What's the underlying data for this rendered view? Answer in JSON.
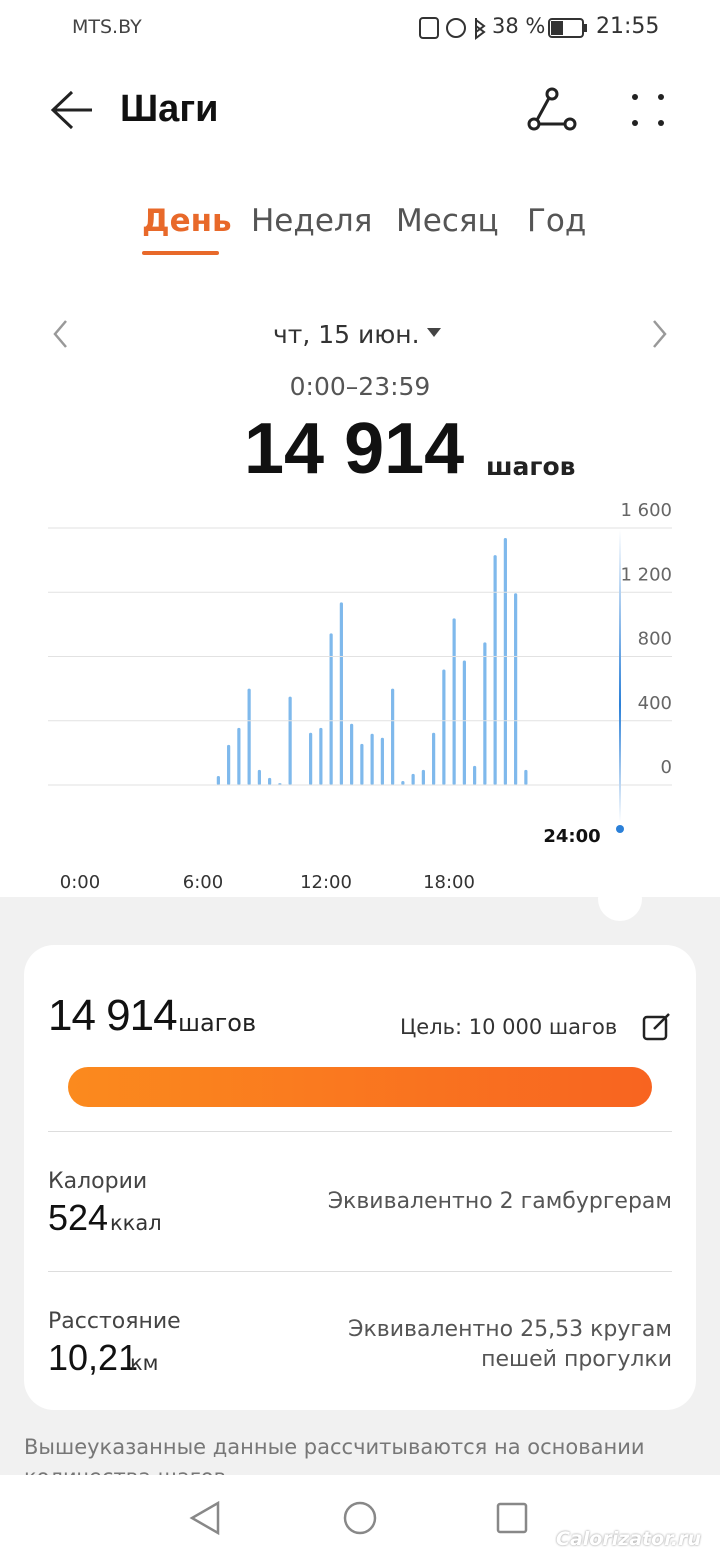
{
  "status_bar": {
    "carrier": "MTS.BY",
    "battery": "38 %",
    "time": "21:55"
  },
  "header": {
    "title": "Шаги"
  },
  "tabs": [
    "День",
    "Неделя",
    "Месяц",
    "Год"
  ],
  "summary": {
    "date": "чт, 15 июн.",
    "range": "0:00–23:59",
    "total": "14 914",
    "unit": "шагов"
  },
  "chart_data": {
    "type": "bar",
    "color": "#7fb9ec",
    "x": [
      6.75,
      7.25,
      7.75,
      8.25,
      8.75,
      9.25,
      9.75,
      10.25,
      11.25,
      11.75,
      12.25,
      12.75,
      13.25,
      13.75,
      14.25,
      14.75,
      15.25,
      15.75,
      16.25,
      16.75,
      17.25,
      17.75,
      18.25,
      18.75,
      19.25,
      19.75,
      20.25,
      20.75,
      21.25,
      21.75
    ],
    "values": [
      56,
      250,
      356,
      600,
      94,
      44,
      12,
      550,
      325,
      356,
      944,
      1137,
      381,
      256,
      319,
      294,
      600,
      25,
      69,
      94,
      325,
      719,
      1037,
      775,
      119,
      888,
      1431,
      1538,
      1194,
      94
    ],
    "xlim": [
      0,
      24
    ],
    "xticks": [
      {
        "value": 0,
        "label": "0:00"
      },
      {
        "value": 6,
        "label": "6:00"
      },
      {
        "value": 12,
        "label": "12:00"
      },
      {
        "value": 18,
        "label": "18:00"
      },
      {
        "value": 24,
        "label": "24:00"
      }
    ],
    "ylim": [
      0,
      1600
    ],
    "yticks": [
      0,
      400,
      800,
      {
        "value": 1200,
        "label": "1 200"
      },
      {
        "value": 1600,
        "label": "1 600"
      }
    ],
    "grid": true
  },
  "card": {
    "steps": "14 914",
    "steps_unit": "шагов",
    "goal": "Цель: 10 000 шагов",
    "calories": {
      "label": "Калории",
      "value": "524",
      "unit": "ккал",
      "note": "Эквивалентно 2 гамбургерам"
    },
    "distance": {
      "label": "Расстояние",
      "value": "10,21",
      "unit": "км",
      "note": "Эквивалентно 25,53 кругам пешей прогулки"
    }
  },
  "footnote": "Вышеуказанные данные рассчитываются на основании количества шагов",
  "watermark": "Calorizator.ru"
}
